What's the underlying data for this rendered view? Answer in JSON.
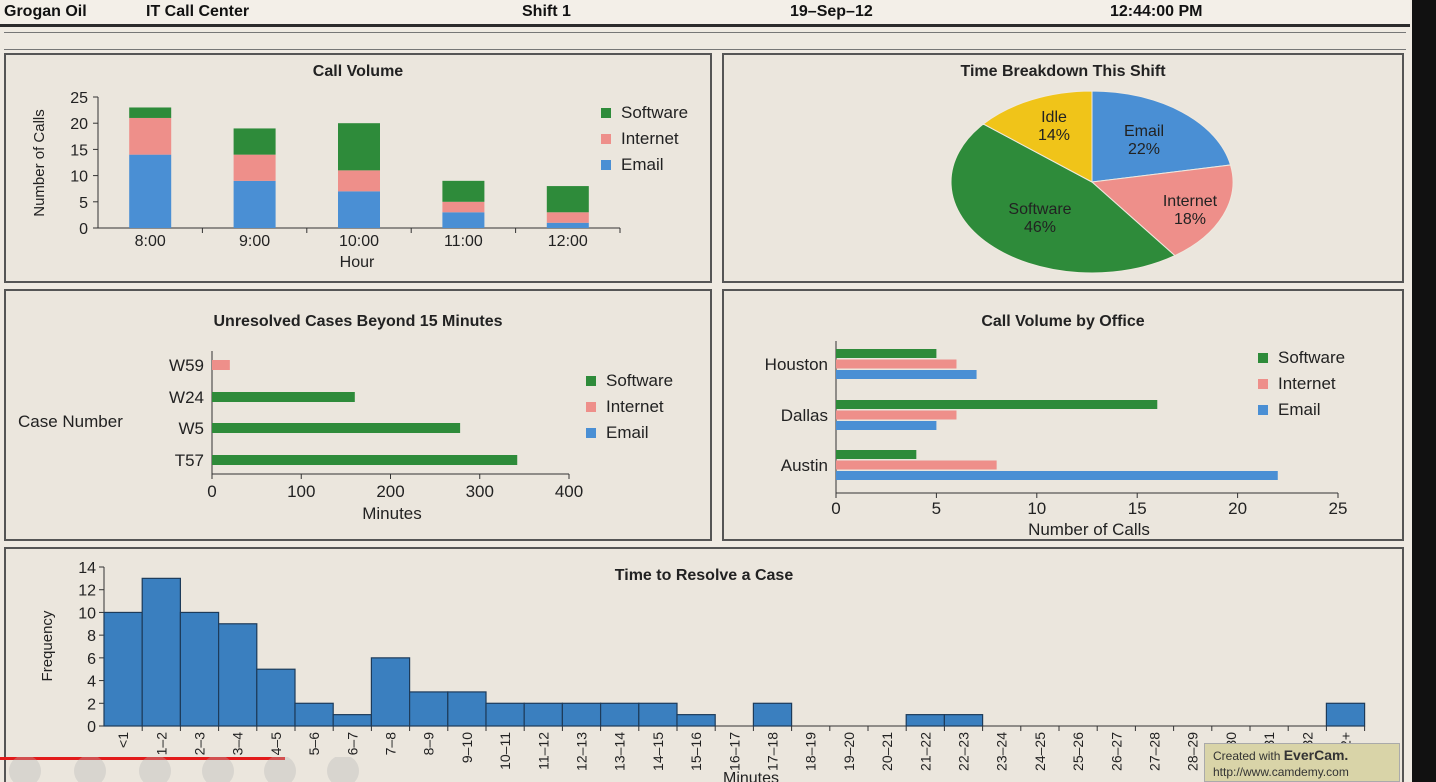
{
  "header": {
    "company": "Grogan Oil",
    "dept": "IT Call Center",
    "shift": "Shift 1",
    "date": "19–Sep–12",
    "time": "12:44:00 PM"
  },
  "colors": {
    "software": "#2e8b3a",
    "internet": "#ee8f8a",
    "email": "#4a8fd4",
    "idle": "#f0c419",
    "hist": "#3a7fbf"
  },
  "badge": {
    "line1": "Created with",
    "brand": "EverCam.",
    "url": "http://www.camdemy.com"
  },
  "chart_data": [
    {
      "id": "call_volume",
      "type": "bar",
      "title": "Call Volume",
      "xlabel": "Hour",
      "ylabel": "Number of Calls",
      "ylim": [
        0,
        25
      ],
      "yticks": [
        0,
        5,
        10,
        15,
        20,
        25
      ],
      "categories": [
        "8:00",
        "9:00",
        "10:00",
        "11:00",
        "12:00"
      ],
      "stacked": true,
      "series": [
        {
          "name": "Email",
          "values": [
            14,
            9,
            7,
            3,
            1
          ]
        },
        {
          "name": "Internet",
          "values": [
            7,
            5,
            4,
            2,
            2
          ]
        },
        {
          "name": "Software",
          "values": [
            2,
            5,
            9,
            4,
            5
          ]
        }
      ],
      "legend": [
        "Software",
        "Internet",
        "Email"
      ],
      "legend_position": "right"
    },
    {
      "id": "time_breakdown",
      "type": "pie",
      "title": "Time Breakdown This Shift",
      "slices": [
        {
          "label": "Email",
          "value": 22,
          "text": "22%"
        },
        {
          "label": "Internet",
          "value": 18,
          "text": "18%"
        },
        {
          "label": "Software",
          "value": 46,
          "text": "46%"
        },
        {
          "label": "Idle",
          "value": 14,
          "text": "14%"
        }
      ]
    },
    {
      "id": "unresolved",
      "type": "bar",
      "orientation": "horizontal",
      "title": "Unresolved Cases Beyond 15 Minutes",
      "xlabel": "Minutes",
      "ylabel": "Case Number",
      "xlim": [
        0,
        400
      ],
      "xticks": [
        0,
        100,
        200,
        300,
        400
      ],
      "categories": [
        "W59",
        "W24",
        "W5",
        "T57"
      ],
      "values": [
        20,
        160,
        278,
        342
      ],
      "bar_series": [
        "Internet",
        "Software",
        "Software",
        "Software"
      ],
      "legend": [
        "Software",
        "Internet",
        "Email"
      ],
      "legend_position": "right"
    },
    {
      "id": "by_office",
      "type": "bar",
      "orientation": "horizontal",
      "title": "Call Volume by Office",
      "xlabel": "Number of Calls",
      "xlim": [
        0,
        25
      ],
      "xticks": [
        0,
        5,
        10,
        15,
        20,
        25
      ],
      "categories": [
        "Houston",
        "Dallas",
        "Austin"
      ],
      "series": [
        {
          "name": "Software",
          "values": [
            5,
            16,
            4
          ]
        },
        {
          "name": "Internet",
          "values": [
            6,
            6,
            8
          ]
        },
        {
          "name": "Email",
          "values": [
            7,
            5,
            22
          ]
        }
      ],
      "legend": [
        "Software",
        "Internet",
        "Email"
      ],
      "legend_position": "right"
    },
    {
      "id": "resolve_time",
      "type": "bar",
      "title": "Time to Resolve a Case",
      "xlabel": "Minutes",
      "ylabel": "Frequency",
      "ylim": [
        0,
        14
      ],
      "yticks": [
        0,
        2,
        4,
        6,
        8,
        10,
        12,
        14
      ],
      "categories": [
        "<1",
        "1–2",
        "2–3",
        "3–4",
        "4–5",
        "5–6",
        "6–7",
        "7–8",
        "8–9",
        "9–10",
        "10–11",
        "11–12",
        "12–13",
        "13–14",
        "14–15",
        "15–16",
        "16–17",
        "17–18",
        "18–19",
        "19–20",
        "20–21",
        "21–22",
        "22–23",
        "23–24",
        "24–25",
        "25–26",
        "26–27",
        "27–28",
        "28–29",
        "29–30",
        "30–31",
        "31–32",
        "32+"
      ],
      "values": [
        10,
        13,
        10,
        9,
        5,
        2,
        1,
        6,
        3,
        3,
        2,
        2,
        2,
        2,
        2,
        1,
        0,
        2,
        0,
        0,
        0,
        1,
        1,
        0,
        0,
        0,
        0,
        0,
        0,
        0,
        0,
        0,
        2
      ]
    }
  ]
}
